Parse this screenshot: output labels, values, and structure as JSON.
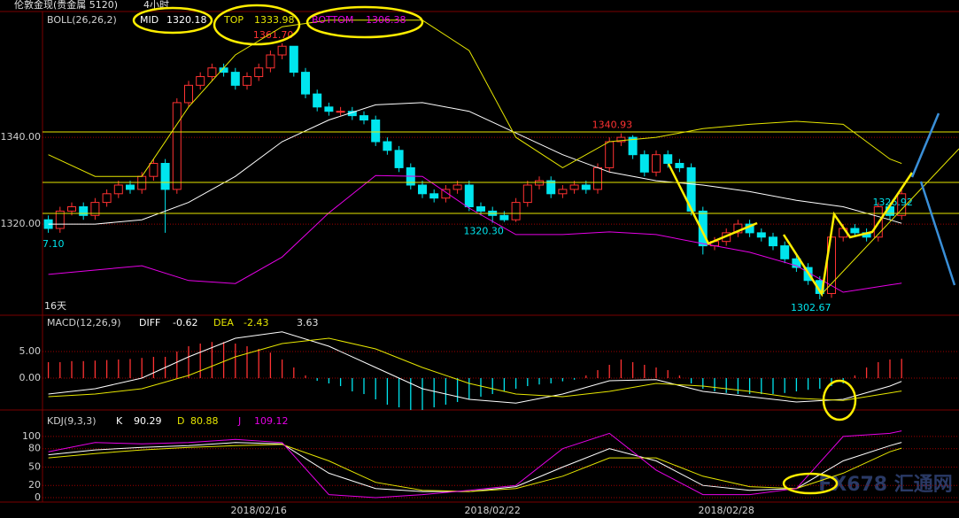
{
  "header": {
    "instrument": "伦敦金现(贵金属 5120)",
    "period": "4小时",
    "watermark": "FX678 汇通网"
  },
  "chart_data": [
    {
      "type": "candlestick",
      "title": "BOLL(26,26,2)",
      "categories": [
        null,
        null,
        null,
        null,
        null,
        null,
        null,
        null,
        null,
        null,
        null,
        null,
        null,
        null,
        null,
        null,
        null,
        null,
        "2018/02/16",
        null,
        null,
        null,
        null,
        null,
        null,
        null,
        null,
        null,
        null,
        null,
        null,
        null,
        null,
        null,
        null,
        null,
        null,
        null,
        "2018/02/22",
        null,
        null,
        null,
        null,
        null,
        null,
        null,
        null,
        null,
        null,
        null,
        null,
        null,
        null,
        null,
        null,
        null,
        null,
        null,
        "2018/02/28",
        null,
        null,
        null,
        null,
        null,
        null,
        null,
        null,
        null,
        null,
        null,
        null,
        null,
        null,
        null
      ],
      "open": [
        1321,
        1319,
        1323,
        1324,
        1322,
        1325,
        1327,
        1329,
        1328,
        1331,
        1334,
        1328,
        1348,
        1352,
        1354,
        1356,
        1355,
        1352,
        1354,
        1356,
        1359,
        1361,
        1355,
        1350,
        1347,
        1346,
        1346,
        1345,
        1344,
        1339,
        1337,
        1333,
        1329,
        1327,
        1326,
        1328,
        1329,
        1324,
        1323,
        1322,
        1321,
        1325,
        1329,
        1330,
        1327,
        1328,
        1329,
        1328,
        1333,
        1339,
        1340,
        1336,
        1332,
        1336,
        1334,
        1333,
        1323,
        1315,
        1316,
        1318,
        1320,
        1318,
        1317,
        1315,
        1312,
        1310,
        1307,
        1304,
        1317,
        1319,
        1318,
        1317,
        1324,
        1322
      ],
      "high": [
        1322,
        1324,
        1325,
        1325,
        1326,
        1328,
        1330,
        1330,
        1332,
        1335,
        1335,
        1349,
        1353,
        1355,
        1357,
        1357,
        1356,
        1355,
        1357,
        1360,
        1361.7,
        1361,
        1356,
        1351,
        1348,
        1347,
        1347,
        1346,
        1345,
        1340,
        1338,
        1334,
        1330,
        1328,
        1329,
        1330,
        1330,
        1325,
        1324,
        1323,
        1326,
        1330,
        1331,
        1331,
        1329,
        1330,
        1330,
        1334,
        1340,
        1340.93,
        1340.5,
        1337,
        1337,
        1337,
        1335,
        1334,
        1324,
        1317,
        1319,
        1321,
        1321,
        1319,
        1318,
        1316,
        1313,
        1311,
        1308,
        1318,
        1320,
        1320,
        1319,
        1325,
        1325,
        1328
      ],
      "low": [
        1318,
        1318,
        1322,
        1321,
        1321,
        1324,
        1326,
        1327,
        1327,
        1330,
        1318,
        1327,
        1347,
        1351,
        1353,
        1354,
        1351,
        1351,
        1353,
        1355,
        1358,
        1354,
        1349,
        1346,
        1345,
        1345,
        1344,
        1343,
        1338,
        1336,
        1332,
        1328,
        1326,
        1325,
        1325,
        1327,
        1323,
        1322,
        1320.3,
        1320.5,
        1320.5,
        1324,
        1328,
        1326,
        1326,
        1327,
        1327,
        1327,
        1332,
        1338,
        1335,
        1331,
        1331,
        1333,
        1332,
        1322,
        1313,
        1314,
        1315,
        1317,
        1317,
        1316,
        1314,
        1311,
        1309,
        1306,
        1302.67,
        1303,
        1316,
        1317,
        1316,
        1316,
        1321,
        1321
      ],
      "close": [
        1319,
        1323,
        1324,
        1322,
        1325,
        1327,
        1329,
        1328,
        1331,
        1334,
        1328,
        1348,
        1352,
        1354,
        1356,
        1355,
        1352,
        1354,
        1356,
        1359,
        1361,
        1355,
        1350,
        1347,
        1346,
        1346,
        1345,
        1344,
        1339,
        1337,
        1333,
        1329,
        1327,
        1326,
        1328,
        1329,
        1324,
        1323,
        1322,
        1321,
        1325,
        1329,
        1330,
        1327,
        1328,
        1329,
        1328,
        1333,
        1339,
        1340,
        1336,
        1332,
        1336,
        1334,
        1333,
        1323,
        1315,
        1316,
        1318,
        1320,
        1318,
        1317,
        1315,
        1312,
        1310,
        1307,
        1304,
        1317,
        1319,
        1318,
        1317,
        1324,
        1322,
        1327
      ],
      "up_color": "#ff3232",
      "down_color": "#00e5ee",
      "series": [
        {
          "name": "MID",
          "color": "#ffffff",
          "x": [
            0,
            4,
            8,
            12,
            16,
            20,
            24,
            28,
            32,
            36,
            40,
            44,
            48,
            52,
            56,
            60,
            64,
            68,
            72,
            73
          ],
          "values": [
            1320,
            1320,
            1321,
            1325,
            1331,
            1339,
            1344,
            1347.5,
            1348,
            1346,
            1341,
            1336,
            1332,
            1330,
            1329,
            1327.5,
            1325.5,
            1324,
            1321,
            1320.18
          ]
        },
        {
          "name": "TOP",
          "color": "#e6e600",
          "x": [
            0,
            4,
            8,
            12,
            16,
            20,
            24,
            28,
            32,
            36,
            40,
            44,
            48,
            52,
            56,
            60,
            64,
            68,
            72,
            73
          ],
          "values": [
            1336,
            1331,
            1331,
            1347,
            1359,
            1365.5,
            1367,
            1367,
            1367,
            1360,
            1340,
            1333,
            1339,
            1340,
            1342,
            1343,
            1343.7,
            1343,
            1335,
            1333.98
          ]
        },
        {
          "name": "BOTTOM",
          "color": "#e600e6",
          "x": [
            0,
            4,
            8,
            12,
            16,
            20,
            24,
            28,
            32,
            36,
            40,
            44,
            48,
            52,
            56,
            60,
            64,
            68,
            72,
            73
          ],
          "values": [
            1308.4,
            1309.4,
            1310.4,
            1307,
            1306.3,
            1312.4,
            1322.6,
            1331.2,
            1331,
            1323.7,
            1317.6,
            1317.6,
            1318.2,
            1317.6,
            1315.5,
            1313.5,
            1310.4,
            1304.3,
            1306,
            1306.38
          ]
        }
      ],
      "annotations": [
        {
          "index": 20,
          "value": 1361.7,
          "label": "1361.70"
        },
        {
          "index": 49,
          "value": 1340.93,
          "label": "1340.93"
        },
        {
          "index": 38,
          "value": 1320.3,
          "label": "1320.30"
        },
        {
          "index": 66,
          "value": 1302.67,
          "label": "1302.67"
        },
        {
          "index": 73,
          "value": 1326.92,
          "label": "1326.92"
        }
      ],
      "edge_label": "7.10",
      "period_label": "16天",
      "ylim": [
        1299.2,
        1368.6
      ],
      "yticks": [
        {
          "value": 1340,
          "label": "1340.00"
        },
        {
          "value": 1320,
          "label": "1320.00"
        }
      ],
      "grid": true
    },
    {
      "type": "macd",
      "title": "MACD(12,26,9)",
      "values": [
        3,
        3,
        3.2,
        3.2,
        3.3,
        3.4,
        3.5,
        3.6,
        3.8,
        4,
        4,
        5,
        6,
        6.5,
        6.8,
        6.8,
        6.5,
        6,
        5.5,
        4.8,
        3.5,
        2,
        0.5,
        -0.5,
        -1,
        -1.5,
        -2.5,
        -3,
        -4,
        -5,
        -5.5,
        -6,
        -6,
        -5.5,
        -5,
        -4.5,
        -4,
        -3.5,
        -3,
        -2.5,
        -2,
        -1.5,
        -1.2,
        -1,
        -0.6,
        -0.3,
        0.5,
        1.5,
        2.5,
        3.5,
        3,
        2.5,
        2,
        1.5,
        0.5,
        -1,
        -2,
        -2.5,
        -2.8,
        -3,
        -3,
        -3,
        -3,
        -2.8,
        -2.5,
        -2.2,
        -2,
        -1.5,
        -1,
        0.5,
        2,
        3,
        3.5,
        3.63
      ],
      "up_color": "#ff3232",
      "down_color": "#00e5ee",
      "series": [
        {
          "name": "DIFF",
          "color": "#ffffff",
          "x": [
            0,
            4,
            8,
            12,
            16,
            20,
            24,
            28,
            32,
            36,
            40,
            44,
            48,
            52,
            56,
            60,
            64,
            68,
            72,
            73
          ],
          "values": [
            -3,
            -2,
            0,
            4,
            7.5,
            8.7,
            6,
            2,
            -2,
            -4,
            -4.7,
            -3,
            -0.5,
            -0.3,
            -2.5,
            -3.5,
            -4.5,
            -4,
            -1.5,
            -0.62
          ]
        },
        {
          "name": "DEA",
          "color": "#e6e600",
          "x": [
            0,
            4,
            8,
            12,
            16,
            20,
            24,
            28,
            32,
            36,
            40,
            44,
            48,
            52,
            56,
            60,
            64,
            68,
            72,
            73
          ],
          "values": [
            -3.5,
            -3,
            -2,
            0.5,
            4,
            6.5,
            7.5,
            5.5,
            2,
            -1,
            -3,
            -3.5,
            -2.5,
            -1,
            -1.5,
            -2.5,
            -3.8,
            -4.2,
            -2.8,
            -2.43
          ]
        }
      ],
      "ylim": [
        -5.83,
        11.67
      ],
      "yticks": [
        {
          "value": 5,
          "label": "5.00"
        },
        {
          "value": 0,
          "label": "0.00"
        }
      ],
      "grid": true
    },
    {
      "type": "line",
      "title": "KDJ(9,3,3)",
      "series": [
        {
          "name": "K",
          "color": "#ffffff",
          "x": [
            0,
            4,
            8,
            12,
            16,
            20,
            24,
            28,
            32,
            36,
            40,
            44,
            48,
            52,
            56,
            60,
            64,
            68,
            72,
            73
          ],
          "values": [
            70,
            78,
            82,
            85,
            90,
            88,
            40,
            15,
            10,
            10,
            18,
            50,
            80,
            60,
            20,
            12,
            15,
            60,
            85,
            90.29
          ]
        },
        {
          "name": "D",
          "color": "#e6e600",
          "x": [
            0,
            4,
            8,
            12,
            16,
            20,
            24,
            28,
            32,
            36,
            40,
            44,
            48,
            52,
            56,
            60,
            64,
            68,
            72,
            73
          ],
          "values": [
            65,
            72,
            78,
            82,
            85,
            87,
            60,
            25,
            12,
            10,
            15,
            35,
            65,
            65,
            35,
            18,
            15,
            40,
            75,
            80.88
          ]
        },
        {
          "name": "J",
          "color": "#e600e6",
          "x": [
            0,
            4,
            8,
            12,
            16,
            20,
            24,
            28,
            32,
            36,
            40,
            44,
            48,
            52,
            56,
            60,
            64,
            68,
            72,
            73
          ],
          "values": [
            75,
            90,
            88,
            90,
            95,
            90,
            5,
            0,
            5,
            12,
            20,
            80,
            105,
            45,
            5,
            5,
            15,
            100,
            105,
            109.12
          ]
        }
      ],
      "ylim": [
        -7.2,
        136
      ],
      "yticks": [
        100,
        80,
        50,
        20,
        0
      ],
      "grid": true
    }
  ]
}
